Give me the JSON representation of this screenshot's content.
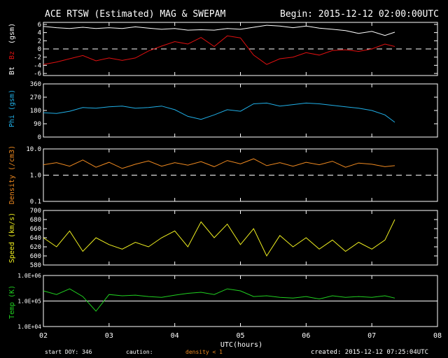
{
  "header": {
    "title": "ACE RTSW (Estimated) MAG & SWEPAM",
    "begin": "Begin: 2015-12-12 02:00:00UTC"
  },
  "footer": {
    "start_doy": "start DOY: 346",
    "caution": "caution:",
    "density_note": "density < 1",
    "created": "created: 2015-12-12 07:25:04UTC"
  },
  "colors": {
    "bt": "#ffffff",
    "bz": "#e01010",
    "phi": "#20b0e8",
    "density": "#f08a20",
    "speed": "#f0f020",
    "temp": "#20d020",
    "axes": "#ffffff",
    "caution": "#f08a20"
  },
  "chart_data": [
    {
      "type": "line",
      "ylabel": "Bt Bz (gsm)",
      "ylabel_parts": {
        "bt": "Bt",
        "bz": "Bz",
        "unit": "(gsm)"
      },
      "ylim": [
        -6.5,
        6.5
      ],
      "y_ticks": [
        6,
        4,
        2,
        0,
        -2,
        -4,
        -6
      ],
      "y_tick_labels": [
        "6",
        "4",
        "2",
        "0",
        "-2",
        "-4",
        "-6"
      ],
      "reference_line": 0,
      "x": [
        2.0,
        2.2,
        2.4,
        2.6,
        2.8,
        3.0,
        3.2,
        3.4,
        3.6,
        3.8,
        4.0,
        4.2,
        4.4,
        4.6,
        4.8,
        5.0,
        5.2,
        5.4,
        5.6,
        5.8,
        6.0,
        6.2,
        6.4,
        6.6,
        6.8,
        7.0,
        7.2,
        7.35
      ],
      "series": [
        {
          "name": "Bt",
          "values": [
            5.5,
            5.2,
            5.0,
            5.3,
            5.0,
            5.2,
            5.0,
            5.4,
            5.1,
            4.8,
            5.0,
            4.6,
            4.7,
            4.6,
            5.0,
            4.8,
            5.3,
            5.8,
            5.6,
            5.2,
            5.6,
            5.1,
            4.8,
            4.5,
            3.8,
            4.3,
            3.3,
            4.1
          ]
        },
        {
          "name": "Bz",
          "values": [
            -3.8,
            -3.2,
            -2.4,
            -1.6,
            -2.9,
            -2.2,
            -2.8,
            -2.2,
            -0.5,
            0.7,
            1.8,
            1.2,
            2.8,
            0.6,
            3.2,
            2.7,
            -1.5,
            -3.8,
            -2.4,
            -2.0,
            -0.9,
            -1.5,
            -0.4,
            -0.2,
            -0.6,
            0.0,
            1.2,
            0.6
          ]
        }
      ]
    },
    {
      "type": "line",
      "ylabel": "Phi (gsm)",
      "ylim": [
        0,
        360
      ],
      "y_ticks": [
        360,
        270,
        180,
        90,
        0
      ],
      "y_tick_labels": [
        "360",
        "270",
        "180",
        "90",
        "0"
      ],
      "x": [
        2.0,
        2.2,
        2.4,
        2.6,
        2.8,
        3.0,
        3.2,
        3.4,
        3.6,
        3.8,
        4.0,
        4.2,
        4.4,
        4.6,
        4.8,
        5.0,
        5.2,
        5.4,
        5.6,
        5.8,
        6.0,
        6.2,
        6.4,
        6.6,
        6.8,
        7.0,
        7.2,
        7.35
      ],
      "series": [
        {
          "name": "Phi",
          "values": [
            165,
            160,
            175,
            200,
            195,
            205,
            210,
            195,
            200,
            210,
            185,
            140,
            120,
            150,
            185,
            175,
            225,
            230,
            210,
            220,
            230,
            225,
            215,
            205,
            195,
            180,
            150,
            100
          ]
        }
      ]
    },
    {
      "type": "line",
      "ylabel": "Density (/cm3)",
      "yscale": "log",
      "ylim": [
        0.1,
        10.0
      ],
      "y_ticks": [
        10.0,
        1.0,
        0.1
      ],
      "y_tick_labels": [
        "10.0",
        "1.0",
        "0.1"
      ],
      "reference_line": 1.0,
      "x": [
        2.0,
        2.2,
        2.4,
        2.6,
        2.8,
        3.0,
        3.2,
        3.4,
        3.6,
        3.8,
        4.0,
        4.2,
        4.4,
        4.6,
        4.8,
        5.0,
        5.2,
        5.4,
        5.6,
        5.8,
        6.0,
        6.2,
        6.4,
        6.6,
        6.8,
        7.0,
        7.2,
        7.35
      ],
      "series": [
        {
          "name": "Density",
          "values": [
            2.5,
            3.0,
            2.2,
            3.8,
            2.0,
            3.1,
            1.8,
            2.6,
            3.5,
            2.2,
            3.0,
            2.4,
            3.3,
            2.1,
            3.6,
            2.7,
            4.2,
            2.3,
            3.0,
            2.2,
            3.1,
            2.5,
            3.4,
            2.0,
            2.9,
            2.6,
            2.1,
            2.3
          ]
        }
      ]
    },
    {
      "type": "line",
      "ylabel": "Speed (km/s)",
      "ylim": [
        580,
        700
      ],
      "y_ticks": [
        700,
        680,
        660,
        640,
        620,
        600,
        580
      ],
      "y_tick_labels": [
        "700",
        "680",
        "660",
        "640",
        "620",
        "600",
        "580"
      ],
      "x": [
        2.0,
        2.2,
        2.4,
        2.6,
        2.8,
        3.0,
        3.2,
        3.4,
        3.6,
        3.8,
        4.0,
        4.2,
        4.4,
        4.6,
        4.8,
        5.0,
        5.2,
        5.4,
        5.6,
        5.8,
        6.0,
        6.2,
        6.4,
        6.6,
        6.8,
        7.0,
        7.2,
        7.35
      ],
      "series": [
        {
          "name": "Speed",
          "values": [
            640,
            620,
            655,
            610,
            640,
            625,
            615,
            630,
            620,
            640,
            655,
            620,
            675,
            640,
            670,
            625,
            660,
            600,
            645,
            620,
            640,
            615,
            635,
            610,
            630,
            615,
            635,
            680
          ]
        }
      ]
    },
    {
      "type": "line",
      "ylabel": "Temp (K)",
      "yscale": "log",
      "ylim": [
        10000,
        1000000
      ],
      "y_ticks": [
        1000000,
        100000,
        10000
      ],
      "y_tick_labels": [
        "1.0E+06",
        "1.0E+05",
        "1.0E+04"
      ],
      "reference_line": 100000,
      "x": [
        2.0,
        2.2,
        2.4,
        2.6,
        2.8,
        3.0,
        3.2,
        3.4,
        3.6,
        3.8,
        4.0,
        4.2,
        4.4,
        4.6,
        4.8,
        5.0,
        5.2,
        5.4,
        5.6,
        5.8,
        6.0,
        6.2,
        6.4,
        6.6,
        6.8,
        7.0,
        7.2,
        7.35
      ],
      "series": [
        {
          "name": "Temp",
          "values": [
            250000,
            180000,
            300000,
            150000,
            40000,
            180000,
            160000,
            170000,
            150000,
            140000,
            170000,
            200000,
            220000,
            180000,
            300000,
            250000,
            150000,
            160000,
            140000,
            130000,
            150000,
            120000,
            160000,
            140000,
            150000,
            140000,
            160000,
            130000
          ]
        }
      ]
    }
  ],
  "x_axis": {
    "xlim": [
      2,
      8
    ],
    "ticks": [
      2,
      3,
      4,
      5,
      6,
      7,
      8
    ],
    "tick_labels": [
      "02",
      "03",
      "04",
      "05",
      "06",
      "07",
      "08"
    ],
    "label": "UTC(hours)"
  }
}
